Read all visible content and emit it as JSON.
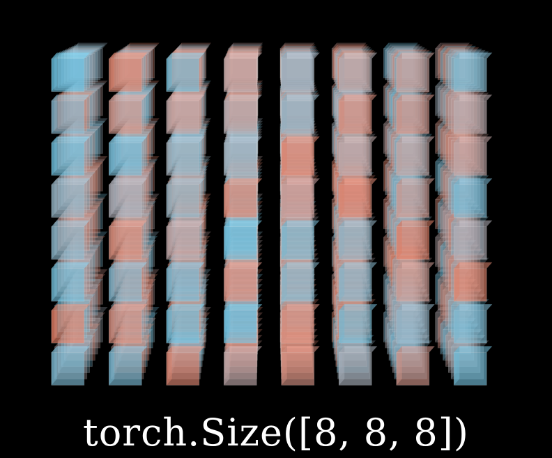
{
  "caption": "torch.Size([8, 8, 8])",
  "tensor": {
    "shape": [
      8,
      8,
      8
    ],
    "colors": {
      "low": "#6ec7e8",
      "mid": "#c2b2b6",
      "high": "#f08468",
      "background": "#000000"
    }
  }
}
